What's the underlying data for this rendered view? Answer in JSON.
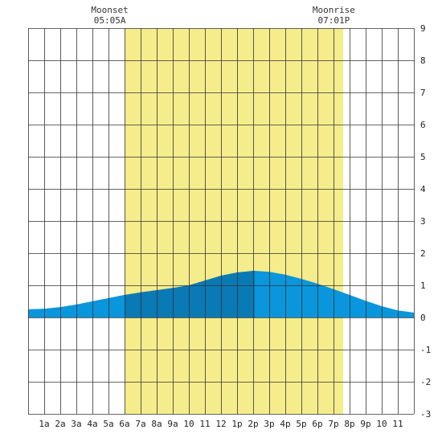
{
  "chart_data": {
    "type": "area",
    "title": "",
    "xlabel": "",
    "ylabel": "",
    "xlim": [
      0,
      24
    ],
    "ylim": [
      -3,
      9
    ],
    "y_ticks": [
      9,
      8,
      7,
      6,
      5,
      4,
      3,
      2,
      1,
      0,
      -1,
      -2,
      -3
    ],
    "y_axis_position": "right",
    "x_ticks": [
      {
        "hour": 1,
        "label": "1a"
      },
      {
        "hour": 2,
        "label": "2a"
      },
      {
        "hour": 3,
        "label": "3a"
      },
      {
        "hour": 4,
        "label": "4a"
      },
      {
        "hour": 5,
        "label": "5a"
      },
      {
        "hour": 6,
        "label": "6a"
      },
      {
        "hour": 7,
        "label": "7a"
      },
      {
        "hour": 8,
        "label": "8a"
      },
      {
        "hour": 9,
        "label": "9a"
      },
      {
        "hour": 10,
        "label": "10"
      },
      {
        "hour": 11,
        "label": "11"
      },
      {
        "hour": 12,
        "label": "12"
      },
      {
        "hour": 13,
        "label": "1p"
      },
      {
        "hour": 14,
        "label": "2p"
      },
      {
        "hour": 15,
        "label": "3p"
      },
      {
        "hour": 16,
        "label": "4p"
      },
      {
        "hour": 17,
        "label": "5p"
      },
      {
        "hour": 18,
        "label": "6p"
      },
      {
        "hour": 19,
        "label": "7p"
      },
      {
        "hour": 20,
        "label": "8p"
      },
      {
        "hour": 21,
        "label": "9p"
      },
      {
        "hour": 22,
        "label": "10"
      },
      {
        "hour": 23,
        "label": "11"
      }
    ],
    "grid": true,
    "daylight": {
      "start": 6.0,
      "end": 19.6
    },
    "high_tide_hour": 14.1,
    "moon_events": [
      {
        "label": "Moonset",
        "time": "05:05A",
        "hour": 5.08
      },
      {
        "label": "Moonrise",
        "time": "07:01P",
        "hour": 19.02
      }
    ],
    "series": [
      {
        "x": [
          0,
          1,
          2,
          3,
          4,
          5,
          6,
          7,
          8,
          9,
          10,
          11,
          12,
          13,
          14,
          14.1,
          15,
          16,
          17,
          18,
          19,
          20,
          21,
          22,
          23,
          24
        ],
        "y": [
          0.25,
          0.27,
          0.32,
          0.4,
          0.5,
          0.6,
          0.7,
          0.78,
          0.85,
          0.92,
          1.0,
          1.15,
          1.3,
          1.4,
          1.45,
          1.45,
          1.42,
          1.33,
          1.2,
          1.05,
          0.88,
          0.7,
          0.52,
          0.35,
          0.22,
          0.15
        ]
      }
    ],
    "colors": {
      "daylight": "#f5ec8c",
      "tide_fill_light": "#0a96dc",
      "tide_fill_dark": "#0a7ab5",
      "grid": "#333333",
      "background": "#ffffff"
    }
  }
}
